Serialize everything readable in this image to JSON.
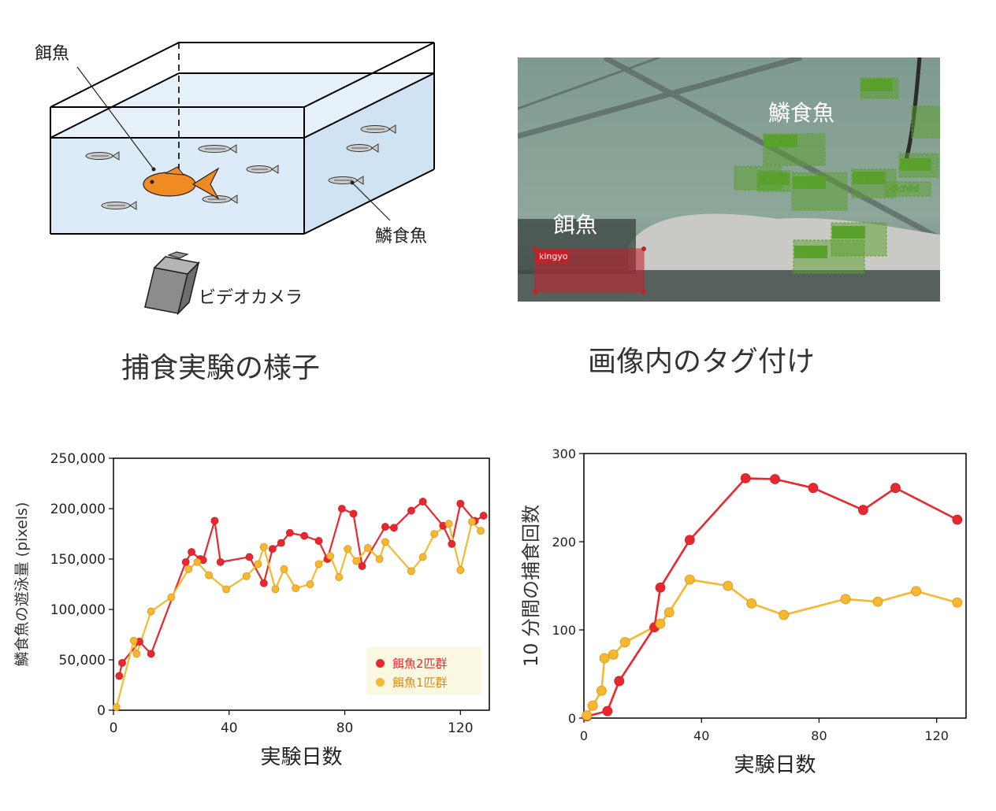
{
  "top_left": {
    "caption": "捕食実験の様子",
    "labels": {
      "prey": "餌魚",
      "predator": "鱗食魚",
      "camera": "ビデオカメラ"
    }
  },
  "top_right": {
    "caption": "画像内のタグ付け",
    "overlay_labels": {
      "predator": "鱗食魚",
      "prey": "餌魚"
    },
    "tags": {
      "prey": "kingyo",
      "predator": "cichlid"
    }
  },
  "colors": {
    "red_series": "#e8282f",
    "orange_series": "#f5b82e",
    "tank_water": "#dcebf7",
    "tag_green": "#5aa02c",
    "tag_red": "#c8202a"
  },
  "chart_data": [
    {
      "type": "line",
      "xlabel": "実験日数",
      "ylabel": "鱗食魚の遊泳量 (pixels)",
      "xlim": [
        0,
        130
      ],
      "ylim": [
        0,
        250000
      ],
      "xticks": [
        "0",
        "40",
        "80",
        "120"
      ],
      "yticks": [
        "0",
        "50,000",
        "100,000",
        "150,000",
        "200,000",
        "250,000"
      ],
      "legend": "bottom-right",
      "series": [
        {
          "name": "餌魚2匹群",
          "color": "#e8282f",
          "x": [
            2,
            3,
            9,
            13,
            25,
            27,
            30,
            31,
            35,
            37,
            47,
            52,
            55,
            58,
            61,
            66,
            71,
            74,
            79,
            83,
            86,
            94,
            97,
            103,
            107,
            114,
            117,
            120,
            125,
            128
          ],
          "y": [
            34000,
            47000,
            68000,
            56000,
            147000,
            157000,
            150000,
            149000,
            188000,
            147000,
            152000,
            126000,
            160000,
            166000,
            176000,
            173000,
            168000,
            150000,
            200000,
            195000,
            143000,
            182000,
            181000,
            198000,
            207000,
            183000,
            165000,
            205000,
            188000,
            193000
          ]
        },
        {
          "name": "餌魚1匹群",
          "color": "#f5b82e",
          "x": [
            1,
            7,
            8,
            13,
            20,
            26,
            29,
            33,
            39,
            46,
            50,
            52,
            56,
            59,
            63,
            68,
            71,
            75,
            78,
            81,
            84,
            88,
            92,
            94,
            103,
            107,
            111,
            116,
            120,
            124,
            127
          ],
          "y": [
            3000,
            69000,
            56000,
            98000,
            112000,
            140000,
            147000,
            134000,
            120000,
            133000,
            145000,
            162000,
            120000,
            140000,
            121000,
            125000,
            145000,
            153000,
            132000,
            160000,
            148000,
            161000,
            150000,
            167000,
            138000,
            152000,
            175000,
            185000,
            139000,
            187000,
            178000
          ]
        }
      ]
    },
    {
      "type": "line",
      "xlabel": "実験日数",
      "ylabel": "10 分間の捕食回数",
      "xlim": [
        0,
        130
      ],
      "ylim": [
        0,
        300
      ],
      "xticks": [
        "0",
        "40",
        "80",
        "120"
      ],
      "yticks": [
        "0",
        "100",
        "200",
        "300"
      ],
      "series": [
        {
          "name": "",
          "color": "#e8282f",
          "x": [
            1,
            8,
            12,
            24,
            26,
            36,
            55,
            65,
            78,
            95,
            106,
            127
          ],
          "y": [
            2,
            8,
            42,
            103,
            148,
            202,
            272,
            271,
            261,
            236,
            261,
            225
          ]
        },
        {
          "name": "",
          "color": "#f5b82e",
          "x": [
            1,
            3,
            6,
            7,
            10,
            14,
            26,
            29,
            36,
            49,
            57,
            68,
            89,
            100,
            113,
            127
          ],
          "y": [
            3,
            14,
            31,
            68,
            72,
            86,
            107,
            120,
            157,
            150,
            130,
            117,
            135,
            132,
            144,
            131
          ]
        }
      ]
    }
  ]
}
